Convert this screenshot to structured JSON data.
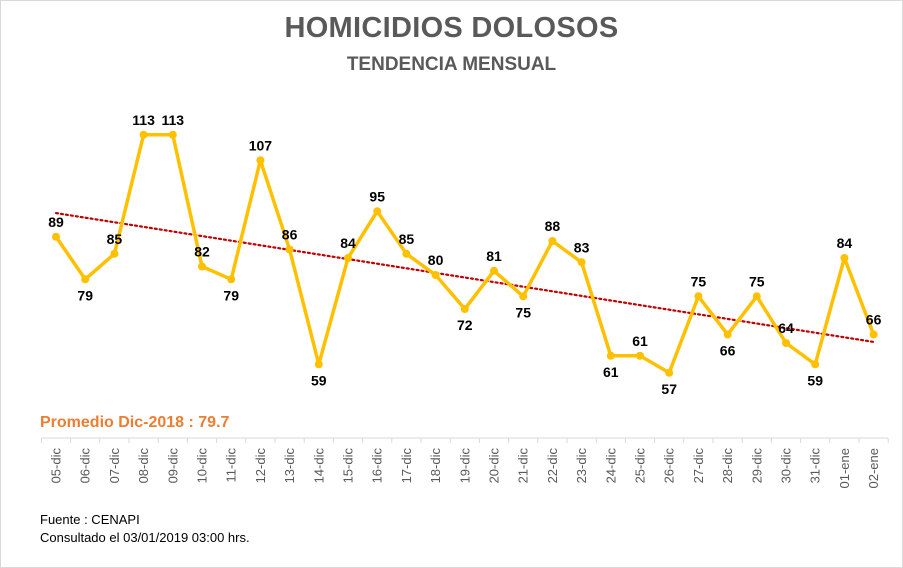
{
  "chart_data": {
    "type": "line",
    "title": "HOMICIDIOS DOLOSOS",
    "subtitle": "TENDENCIA MENSUAL",
    "categories": [
      "05-dic",
      "06-dic",
      "07-dic",
      "08-dic",
      "09-dic",
      "10-dic",
      "11-dic",
      "12-dic",
      "13-dic",
      "14-dic",
      "15-dic",
      "16-dic",
      "17-dic",
      "18-dic",
      "19-dic",
      "20-dic",
      "21-dic",
      "22-dic",
      "23-dic",
      "24-dic",
      "25-dic",
      "26-dic",
      "27-dic",
      "28-dic",
      "29-dic",
      "30-dic",
      "31-dic",
      "01-ene",
      "02-ene"
    ],
    "series": [
      {
        "values": [
          89,
          79,
          85,
          113,
          113,
          82,
          79,
          107,
          86,
          59,
          84,
          95,
          85,
          80,
          72,
          81,
          75,
          88,
          83,
          61,
          61,
          57,
          75,
          66,
          75,
          64,
          59,
          84,
          66
        ]
      }
    ],
    "trendline": {
      "type": "linear",
      "style": "dotted"
    },
    "ylim": [
      40,
      120
    ],
    "grid": false,
    "legend": "none",
    "colors": {
      "series": "#ffc000",
      "trendline": "#c00000",
      "average_label": "#ed7d31",
      "title": "#595959"
    }
  },
  "average_label": "Promedio Dic-2018 : 79.7",
  "source": "Fuente : CENAPI",
  "consulted": "Consultado el 03/01/2019  03:00  hrs."
}
